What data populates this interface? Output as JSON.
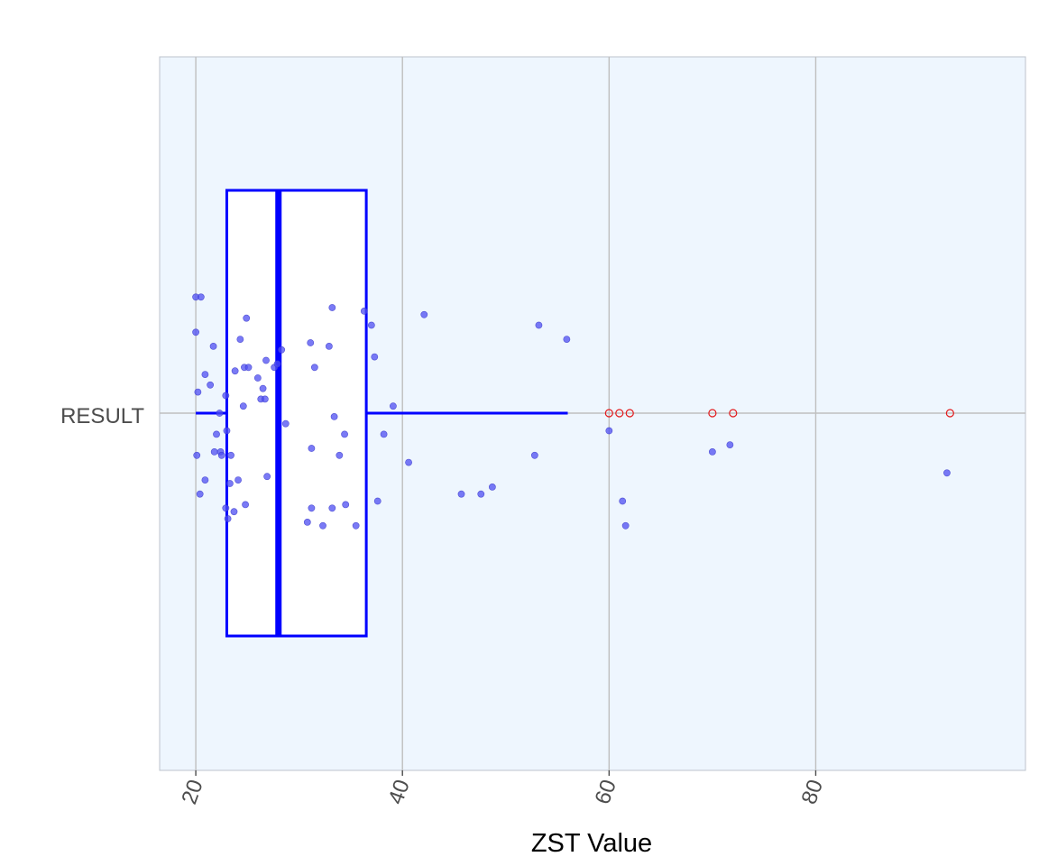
{
  "chart_data": {
    "type": "boxplot",
    "title": "",
    "xlabel": "ZST Value",
    "ylabel": "",
    "category": "RESULT",
    "xlim": [
      16.5,
      100.3
    ],
    "x_ticks": [
      20,
      40,
      60,
      80
    ],
    "x_tick_labels": [
      "20",
      "40",
      "60",
      "80"
    ],
    "x_tick_rotation": -70,
    "grid": true,
    "box": {
      "whisker_low": 20.0,
      "q1": 23.0,
      "median": 28.0,
      "q3": 36.5,
      "whisker_high": 56.0
    },
    "outliers": [
      60.0,
      61.0,
      62.0,
      70.0,
      72.0,
      93.0
    ],
    "jitter_points": [
      {
        "x": 20.0,
        "y": 0.33
      },
      {
        "x": 20.5,
        "y": 0.33
      },
      {
        "x": 20.0,
        "y": 0.23
      },
      {
        "x": 20.2,
        "y": 0.06
      },
      {
        "x": 20.1,
        "y": -0.12
      },
      {
        "x": 20.4,
        "y": -0.23
      },
      {
        "x": 20.9,
        "y": -0.19
      },
      {
        "x": 20.9,
        "y": 0.11
      },
      {
        "x": 21.4,
        "y": 0.08
      },
      {
        "x": 21.7,
        "y": 0.19
      },
      {
        "x": 21.8,
        "y": -0.11
      },
      {
        "x": 22.0,
        "y": -0.06
      },
      {
        "x": 22.3,
        "y": 0.0
      },
      {
        "x": 22.4,
        "y": -0.11
      },
      {
        "x": 22.5,
        "y": -0.12
      },
      {
        "x": 22.9,
        "y": 0.05
      },
      {
        "x": 23.0,
        "y": -0.05
      },
      {
        "x": 22.9,
        "y": -0.27
      },
      {
        "x": 23.1,
        "y": -0.3
      },
      {
        "x": 23.3,
        "y": -0.2
      },
      {
        "x": 23.4,
        "y": -0.12
      },
      {
        "x": 23.7,
        "y": -0.28
      },
      {
        "x": 23.8,
        "y": 0.12
      },
      {
        "x": 24.1,
        "y": -0.19
      },
      {
        "x": 24.3,
        "y": 0.21
      },
      {
        "x": 24.6,
        "y": 0.02
      },
      {
        "x": 24.7,
        "y": 0.13
      },
      {
        "x": 24.9,
        "y": 0.27
      },
      {
        "x": 24.8,
        "y": -0.26
      },
      {
        "x": 25.1,
        "y": 0.13
      },
      {
        "x": 26.0,
        "y": 0.1
      },
      {
        "x": 26.3,
        "y": 0.04
      },
      {
        "x": 26.5,
        "y": 0.07
      },
      {
        "x": 26.7,
        "y": 0.04
      },
      {
        "x": 26.8,
        "y": 0.15
      },
      {
        "x": 26.9,
        "y": -0.18
      },
      {
        "x": 27.6,
        "y": 0.13
      },
      {
        "x": 27.9,
        "y": 0.14
      },
      {
        "x": 28.3,
        "y": 0.18
      },
      {
        "x": 28.7,
        "y": -0.03
      },
      {
        "x": 31.1,
        "y": 0.2
      },
      {
        "x": 31.2,
        "y": -0.1
      },
      {
        "x": 31.5,
        "y": 0.13
      },
      {
        "x": 31.2,
        "y": -0.27
      },
      {
        "x": 30.8,
        "y": -0.31
      },
      {
        "x": 32.3,
        "y": -0.32
      },
      {
        "x": 32.9,
        "y": 0.19
      },
      {
        "x": 33.2,
        "y": 0.3
      },
      {
        "x": 33.4,
        "y": -0.01
      },
      {
        "x": 33.2,
        "y": -0.27
      },
      {
        "x": 33.9,
        "y": -0.12
      },
      {
        "x": 34.4,
        "y": -0.06
      },
      {
        "x": 34.5,
        "y": -0.26
      },
      {
        "x": 35.5,
        "y": -0.32
      },
      {
        "x": 36.3,
        "y": 0.29
      },
      {
        "x": 37.0,
        "y": 0.25
      },
      {
        "x": 37.3,
        "y": 0.16
      },
      {
        "x": 37.6,
        "y": -0.25
      },
      {
        "x": 38.2,
        "y": -0.06
      },
      {
        "x": 39.1,
        "y": 0.02
      },
      {
        "x": 40.6,
        "y": -0.14
      },
      {
        "x": 42.1,
        "y": 0.28
      },
      {
        "x": 45.7,
        "y": -0.23
      },
      {
        "x": 47.6,
        "y": -0.23
      },
      {
        "x": 48.7,
        "y": -0.21
      },
      {
        "x": 52.8,
        "y": -0.12
      },
      {
        "x": 53.2,
        "y": 0.25
      },
      {
        "x": 55.9,
        "y": 0.21
      },
      {
        "x": 60.0,
        "y": -0.05
      },
      {
        "x": 61.3,
        "y": -0.25
      },
      {
        "x": 61.6,
        "y": -0.32
      },
      {
        "x": 70.0,
        "y": -0.11
      },
      {
        "x": 71.7,
        "y": -0.09
      },
      {
        "x": 92.7,
        "y": -0.17
      }
    ],
    "colors": {
      "panel_background": "#eef6fe",
      "grid": "#bfbfbf",
      "box": "#0000ff",
      "box_fill": "#ffffff",
      "points": "#4d4df2",
      "outliers": "#e31a1c"
    }
  }
}
